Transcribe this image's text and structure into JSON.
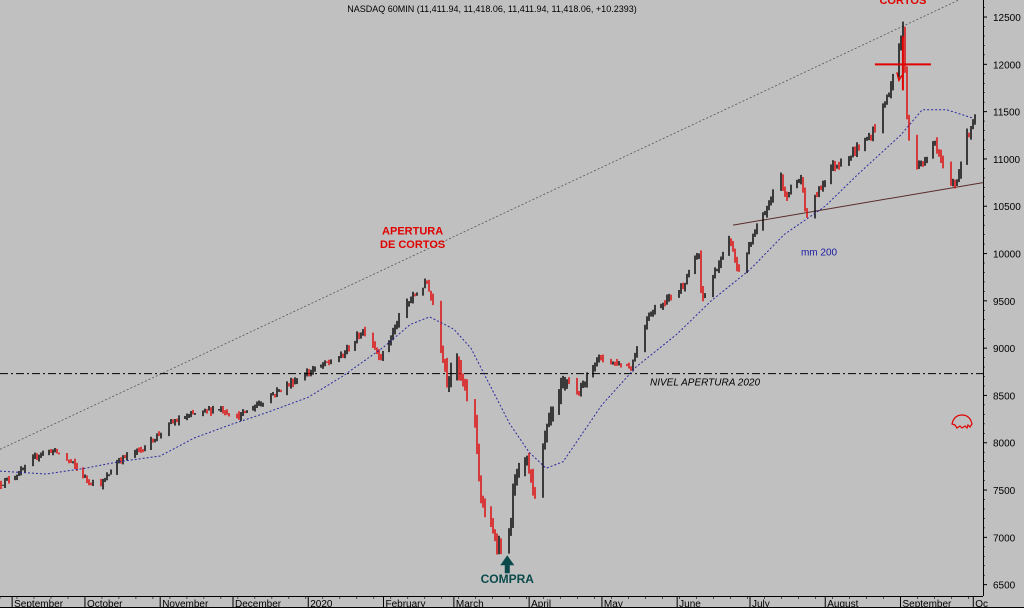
{
  "chart_data": {
    "type": "candlestick",
    "title": "NASDAQ 60MIN (11,411.94, 11,418.06, 11,411.94, 11,418.06, +10.2393)",
    "y_axis": {
      "position": "right",
      "ticks": [
        6500,
        7000,
        7500,
        8000,
        8500,
        9000,
        9500,
        10000,
        10500,
        11000,
        11500,
        12000,
        12500
      ],
      "ylim": [
        6380,
        12680
      ]
    },
    "x_axis": {
      "tick_labels": [
        "September",
        "October",
        "November",
        "December",
        "2020",
        "February",
        "March",
        "April",
        "May",
        "June",
        "July",
        "August",
        "September",
        "Oc"
      ],
      "tick_dates": [
        "2019-09-01",
        "2019-10-01",
        "2019-11-01",
        "2019-12-01",
        "2020-01-01",
        "2020-02-01",
        "2020-03-01",
        "2020-04-01",
        "2020-05-01",
        "2020-06-01",
        "2020-07-01",
        "2020-08-01",
        "2020-09-01",
        "2020-10-01"
      ]
    },
    "series": [
      {
        "name": "NASDAQ 60MIN",
        "style": "ohlc-bars",
        "colors": {
          "up": "#000000",
          "down": "#e00000"
        },
        "points": [
          {
            "x": "2019-08-27",
            "y": 7560
          },
          {
            "x": "2019-09-05",
            "y": 7700
          },
          {
            "x": "2019-09-12",
            "y": 7880
          },
          {
            "x": "2019-09-18",
            "y": 7920
          },
          {
            "x": "2019-09-26",
            "y": 7780
          },
          {
            "x": "2019-10-02",
            "y": 7600
          },
          {
            "x": "2019-10-08",
            "y": 7560
          },
          {
            "x": "2019-10-15",
            "y": 7820
          },
          {
            "x": "2019-10-25",
            "y": 7940
          },
          {
            "x": "2019-11-05",
            "y": 8200
          },
          {
            "x": "2019-11-15",
            "y": 8300
          },
          {
            "x": "2019-11-25",
            "y": 8370
          },
          {
            "x": "2019-12-03",
            "y": 8270
          },
          {
            "x": "2019-12-16",
            "y": 8490
          },
          {
            "x": "2019-12-31",
            "y": 8730
          },
          {
            "x": "2020-01-15",
            "y": 8920
          },
          {
            "x": "2020-01-24",
            "y": 9200
          },
          {
            "x": "2020-01-31",
            "y": 8900
          },
          {
            "x": "2020-02-10",
            "y": 9450
          },
          {
            "x": "2020-02-19",
            "y": 9700
          },
          {
            "x": "2020-02-24",
            "y": 9200
          },
          {
            "x": "2020-02-27",
            "y": 8700
          },
          {
            "x": "2020-03-02",
            "y": 8850
          },
          {
            "x": "2020-03-06",
            "y": 8500
          },
          {
            "x": "2020-03-10",
            "y": 8200
          },
          {
            "x": "2020-03-12",
            "y": 7400
          },
          {
            "x": "2020-03-16",
            "y": 7100
          },
          {
            "x": "2020-03-19",
            "y": 6950
          },
          {
            "x": "2020-03-23",
            "y": 6800
          },
          {
            "x": "2020-03-26",
            "y": 7600
          },
          {
            "x": "2020-03-31",
            "y": 7800
          },
          {
            "x": "2020-04-03",
            "y": 7500
          },
          {
            "x": "2020-04-09",
            "y": 8200
          },
          {
            "x": "2020-04-17",
            "y": 8700
          },
          {
            "x": "2020-04-21",
            "y": 8500
          },
          {
            "x": "2020-04-29",
            "y": 8900
          },
          {
            "x": "2020-05-13",
            "y": 8800
          },
          {
            "x": "2020-05-20",
            "y": 9350
          },
          {
            "x": "2020-06-03",
            "y": 9650
          },
          {
            "x": "2020-06-10",
            "y": 10000
          },
          {
            "x": "2020-06-11",
            "y": 9500
          },
          {
            "x": "2020-06-23",
            "y": 10150
          },
          {
            "x": "2020-06-26",
            "y": 9800
          },
          {
            "x": "2020-07-10",
            "y": 10600
          },
          {
            "x": "2020-07-13",
            "y": 11000
          },
          {
            "x": "2020-07-15",
            "y": 10600
          },
          {
            "x": "2020-07-22",
            "y": 10800
          },
          {
            "x": "2020-07-24",
            "y": 10400
          },
          {
            "x": "2020-08-03",
            "y": 10900
          },
          {
            "x": "2020-08-12",
            "y": 11050
          },
          {
            "x": "2020-08-20",
            "y": 11250
          },
          {
            "x": "2020-08-28",
            "y": 11750
          },
          {
            "x": "2020-09-02",
            "y": 12400
          },
          {
            "x": "2020-09-04",
            "y": 11300
          },
          {
            "x": "2020-09-08",
            "y": 10900
          },
          {
            "x": "2020-09-11",
            "y": 11000
          },
          {
            "x": "2020-09-15",
            "y": 11200
          },
          {
            "x": "2020-09-21",
            "y": 10700
          },
          {
            "x": "2020-09-24",
            "y": 10750
          },
          {
            "x": "2020-09-28",
            "y": 11200
          },
          {
            "x": "2020-10-01",
            "y": 11418
          }
        ]
      },
      {
        "name": "mm 200",
        "style": "dotted-line",
        "color": "#2a2aa0",
        "points": [
          {
            "x": "2019-08-27",
            "y": 7700
          },
          {
            "x": "2019-09-15",
            "y": 7670
          },
          {
            "x": "2019-10-01",
            "y": 7730
          },
          {
            "x": "2019-10-15",
            "y": 7800
          },
          {
            "x": "2019-11-01",
            "y": 7860
          },
          {
            "x": "2019-11-15",
            "y": 8050
          },
          {
            "x": "2019-12-01",
            "y": 8200
          },
          {
            "x": "2019-12-15",
            "y": 8320
          },
          {
            "x": "2020-01-01",
            "y": 8480
          },
          {
            "x": "2020-01-15",
            "y": 8700
          },
          {
            "x": "2020-02-01",
            "y": 9010
          },
          {
            "x": "2020-02-12",
            "y": 9250
          },
          {
            "x": "2020-02-20",
            "y": 9330
          },
          {
            "x": "2020-03-01",
            "y": 9200
          },
          {
            "x": "2020-03-08",
            "y": 9000
          },
          {
            "x": "2020-03-15",
            "y": 8650
          },
          {
            "x": "2020-03-24",
            "y": 8200
          },
          {
            "x": "2020-04-01",
            "y": 7900
          },
          {
            "x": "2020-04-08",
            "y": 7730
          },
          {
            "x": "2020-04-15",
            "y": 7800
          },
          {
            "x": "2020-05-01",
            "y": 8400
          },
          {
            "x": "2020-05-15",
            "y": 8800
          },
          {
            "x": "2020-06-01",
            "y": 9150
          },
          {
            "x": "2020-06-15",
            "y": 9500
          },
          {
            "x": "2020-07-01",
            "y": 9830
          },
          {
            "x": "2020-07-15",
            "y": 10200
          },
          {
            "x": "2020-08-01",
            "y": 10500
          },
          {
            "x": "2020-08-15",
            "y": 10850
          },
          {
            "x": "2020-09-01",
            "y": 11250
          },
          {
            "x": "2020-09-10",
            "y": 11520
          },
          {
            "x": "2020-09-20",
            "y": 11520
          },
          {
            "x": "2020-10-01",
            "y": 11430
          }
        ]
      }
    ],
    "lines": [
      {
        "kind": "resistance-trendline",
        "from": {
          "x": "2019-08-27",
          "y": 7930
        },
        "to": {
          "x": "2020-10-05",
          "y": 12800
        }
      },
      {
        "kind": "support-trendline",
        "from": {
          "x": "2020-06-24",
          "y": 10300
        },
        "to": {
          "x": "2020-10-05",
          "y": 10750
        }
      },
      {
        "kind": "horizontal-level",
        "y": 8730,
        "label": "NIVEL APERTURA 2020"
      }
    ],
    "annotations": [
      {
        "text": "APERTURA",
        "kind": "label-red",
        "at": {
          "x": "2020-02-13",
          "y": 10200
        }
      },
      {
        "text": "DE CORTOS",
        "kind": "label-red",
        "at": {
          "x": "2020-02-13",
          "y": 10060
        }
      },
      {
        "text": "CORTOS",
        "kind": "label-red",
        "at": {
          "x": "2020-09-02",
          "y": 12640
        }
      },
      {
        "text": "COMPRA",
        "kind": "label-green",
        "at": {
          "x": "2020-03-23",
          "y": 6520
        }
      },
      {
        "text": "mm 200",
        "kind": "label-blue",
        "at": {
          "x": "2020-07-22",
          "y": 9980
        }
      }
    ]
  }
}
